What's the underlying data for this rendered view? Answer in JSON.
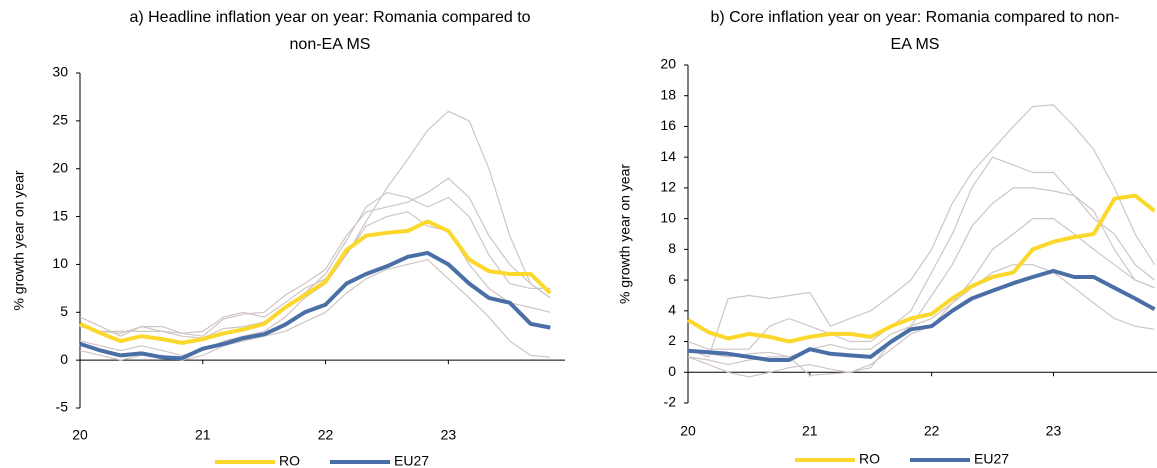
{
  "chart_data": [
    {
      "type": "line",
      "title": "a) Headline inflation year on year: Romania compared to non-EA MS",
      "y_label": "% growth year on year",
      "x": [
        20,
        20.17,
        20.33,
        20.5,
        20.67,
        20.83,
        21,
        21.17,
        21.33,
        21.5,
        21.67,
        21.83,
        22,
        22.17,
        22.33,
        22.5,
        22.67,
        22.83,
        23,
        23.17,
        23.33,
        23.5,
        23.67,
        23.83
      ],
      "xlim": [
        20,
        23.95
      ],
      "xticks": [
        20,
        21,
        22,
        23
      ],
      "ylim": [
        -5,
        30
      ],
      "yticks": [
        -5,
        0,
        5,
        10,
        15,
        20,
        25,
        30
      ],
      "legend": "bottom",
      "series": [
        {
          "color": "#cfc5c5",
          "values": [
            4.5,
            3.5,
            2.5,
            3.5,
            3.5,
            2.8,
            3.0,
            4.5,
            5.0,
            4.5,
            6.0,
            7.5,
            8.5,
            11.0,
            14.5,
            18.0,
            21.0,
            24.0,
            26.0,
            25.0,
            20.0,
            13.0,
            8.0,
            6.5
          ]
        },
        {
          "color": "#cfc5c5",
          "values": [
            3.5,
            3.0,
            3.0,
            3.0,
            3.0,
            2.8,
            2.5,
            4.3,
            4.8,
            5.0,
            6.8,
            8.0,
            9.5,
            13.0,
            15.5,
            16.0,
            16.5,
            17.5,
            19.0,
            17.0,
            13.0,
            10.0,
            8.0,
            6.5
          ]
        },
        {
          "color": "#cfc5c5",
          "values": [
            3.5,
            3.0,
            2.8,
            3.5,
            3.0,
            2.5,
            2.3,
            3.3,
            3.5,
            4.0,
            5.5,
            7.0,
            9.0,
            12.5,
            16.0,
            17.5,
            17.0,
            16.0,
            17.0,
            15.0,
            11.0,
            8.0,
            7.5,
            7.5
          ]
        },
        {
          "color": "#cfc5c5",
          "values": [
            1.0,
            0.5,
            0.0,
            0.5,
            0.5,
            0.0,
            0.5,
            1.5,
            2.0,
            2.5,
            3.0,
            4.0,
            5.0,
            7.0,
            8.5,
            9.5,
            10.0,
            10.5,
            8.5,
            6.5,
            4.5,
            2.0,
            0.5,
            0.3
          ]
        },
        {
          "color": "#cfc5c5",
          "values": [
            2.0,
            1.5,
            1.0,
            1.5,
            1.0,
            0.5,
            1.0,
            2.0,
            2.5,
            3.0,
            4.5,
            6.5,
            8.0,
            11.0,
            14.0,
            15.0,
            15.5,
            14.0,
            13.5,
            10.0,
            7.5,
            6.0,
            5.5,
            5.0
          ]
        },
        {
          "name": "RO",
          "color": "#fcd72c",
          "values": [
            3.8,
            2.8,
            2.0,
            2.5,
            2.2,
            1.8,
            2.2,
            2.8,
            3.2,
            3.8,
            5.5,
            6.8,
            8.2,
            11.5,
            13.0,
            13.3,
            13.5,
            14.5,
            13.5,
            10.5,
            9.3,
            9.0,
            9.0,
            7.0
          ]
        },
        {
          "name": "EU27",
          "color": "#4a6ea6",
          "values": [
            1.7,
            1.0,
            0.5,
            0.7,
            0.3,
            0.2,
            1.2,
            1.7,
            2.3,
            2.7,
            3.7,
            5.0,
            5.8,
            8.0,
            9.0,
            9.8,
            10.8,
            11.2,
            10.0,
            8.0,
            6.5,
            6.0,
            3.8,
            3.4
          ]
        }
      ]
    },
    {
      "type": "line",
      "title": "b) Core inflation year on year: Romania compared to non-EA MS",
      "y_label": "% growth year on year",
      "x": [
        20,
        20.17,
        20.33,
        20.5,
        20.67,
        20.83,
        21,
        21.17,
        21.33,
        21.5,
        21.67,
        21.83,
        22,
        22.17,
        22.33,
        22.5,
        22.67,
        22.83,
        23,
        23.17,
        23.33,
        23.5,
        23.67,
        23.83
      ],
      "xlim": [
        20,
        23.85
      ],
      "xticks": [
        20,
        21,
        22,
        23
      ],
      "ylim": [
        -2,
        20
      ],
      "yticks": [
        -2,
        0,
        2,
        4,
        6,
        8,
        10,
        12,
        14,
        16,
        18,
        20
      ],
      "legend": "bottom",
      "series": [
        {
          "color": "#cfc5c5",
          "values": [
            1.5,
            1.0,
            4.8,
            5.0,
            4.8,
            5.0,
            5.2,
            3.0,
            3.5,
            4.0,
            5.0,
            6.0,
            8.0,
            11.0,
            13.0,
            14.5,
            16.0,
            17.3,
            17.4,
            16.0,
            14.5,
            12.0,
            9.0,
            7.0
          ]
        },
        {
          "color": "#cfc5c5",
          "values": [
            2.0,
            1.5,
            1.5,
            1.5,
            3.0,
            3.5,
            3.0,
            2.5,
            2.0,
            2.0,
            3.0,
            4.0,
            6.5,
            9.0,
            12.0,
            14.0,
            13.5,
            13.0,
            13.0,
            11.5,
            10.0,
            9.0,
            7.0,
            6.0
          ]
        },
        {
          "color": "#cfc5c5",
          "values": [
            1.0,
            0.5,
            0.0,
            -0.3,
            0.0,
            0.3,
            0.5,
            0.2,
            0.0,
            0.3,
            2.0,
            3.0,
            5.0,
            7.0,
            9.5,
            11.0,
            12.0,
            12.0,
            11.8,
            11.5,
            10.5,
            8.0,
            6.0,
            5.5
          ]
        },
        {
          "color": "#cfc5c5",
          "values": [
            1.5,
            1.2,
            1.0,
            1.2,
            1.3,
            1.0,
            1.5,
            1.8,
            1.5,
            1.5,
            2.5,
            3.0,
            3.5,
            4.5,
            5.5,
            6.5,
            7.0,
            7.0,
            6.5,
            5.5,
            4.5,
            3.5,
            3.0,
            2.8
          ]
        },
        {
          "color": "#cfc5c5",
          "values": [
            1.0,
            0.8,
            0.5,
            0.8,
            1.0,
            1.0,
            -0.2,
            -0.1,
            0.0,
            0.5,
            1.5,
            2.5,
            3.0,
            4.5,
            6.0,
            8.0,
            9.0,
            10.0,
            10.0,
            9.0,
            8.0,
            7.0,
            6.0,
            5.5
          ]
        },
        {
          "name": "RO",
          "color": "#fcd72c",
          "values": [
            3.4,
            2.6,
            2.2,
            2.5,
            2.3,
            2.0,
            2.3,
            2.5,
            2.5,
            2.3,
            3.0,
            3.5,
            3.8,
            4.8,
            5.6,
            6.2,
            6.5,
            8.0,
            8.5,
            8.8,
            9.0,
            11.3,
            11.5,
            10.5
          ]
        },
        {
          "name": "EU27",
          "color": "#4a6ea6",
          "values": [
            1.4,
            1.3,
            1.2,
            1.0,
            0.8,
            0.8,
            1.5,
            1.2,
            1.1,
            1.0,
            2.0,
            2.8,
            3.0,
            4.0,
            4.8,
            5.3,
            5.8,
            6.2,
            6.6,
            6.2,
            6.2,
            5.5,
            4.8,
            4.1
          ]
        }
      ]
    }
  ]
}
